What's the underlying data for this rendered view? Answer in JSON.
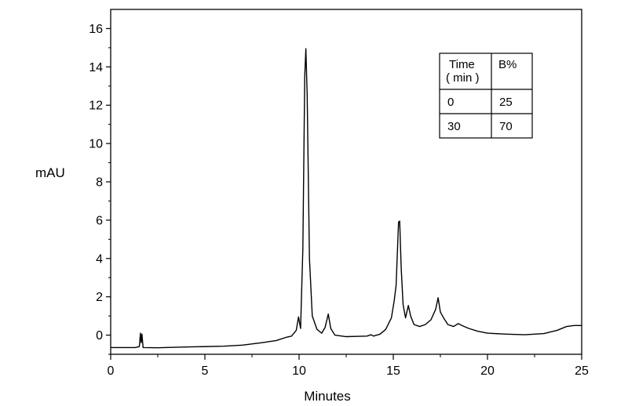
{
  "chart_data": {
    "type": "line",
    "title": "",
    "xlabel": "Minutes",
    "ylabel": "mAU",
    "xlim": [
      0,
      25
    ],
    "ylim": [
      -1,
      17
    ],
    "x_ticks": [
      "0",
      "5",
      "10",
      "15",
      "20",
      "25"
    ],
    "y_ticks": [
      "0",
      "2",
      "4",
      "6",
      "8",
      "10",
      "12",
      "14",
      "16"
    ],
    "grid": false,
    "legend": "none",
    "series": [
      {
        "color": "#000000",
        "points": [
          [
            0,
            -0.65
          ],
          [
            1.3,
            -0.65
          ],
          [
            1.52,
            -0.6
          ],
          [
            1.58,
            0.1
          ],
          [
            1.62,
            -0.4
          ],
          [
            1.66,
            0.05
          ],
          [
            1.72,
            -0.65
          ],
          [
            2.5,
            -0.66
          ],
          [
            4,
            -0.62
          ],
          [
            6,
            -0.58
          ],
          [
            7,
            -0.52
          ],
          [
            8,
            -0.4
          ],
          [
            8.8,
            -0.28
          ],
          [
            9.3,
            -0.12
          ],
          [
            9.6,
            -0.05
          ],
          [
            9.85,
            0.25
          ],
          [
            9.97,
            0.95
          ],
          [
            10.08,
            0.35
          ],
          [
            10.2,
            4.5
          ],
          [
            10.3,
            13.5
          ],
          [
            10.36,
            14.95
          ],
          [
            10.43,
            12.5
          ],
          [
            10.55,
            4.0
          ],
          [
            10.7,
            1.0
          ],
          [
            10.95,
            0.3
          ],
          [
            11.2,
            0.1
          ],
          [
            11.38,
            0.4
          ],
          [
            11.55,
            1.1
          ],
          [
            11.68,
            0.35
          ],
          [
            11.9,
            0.0
          ],
          [
            12.5,
            -0.08
          ],
          [
            13.2,
            -0.06
          ],
          [
            13.6,
            -0.05
          ],
          [
            13.82,
            0.02
          ],
          [
            13.95,
            -0.05
          ],
          [
            14.3,
            0.05
          ],
          [
            14.6,
            0.3
          ],
          [
            14.9,
            0.9
          ],
          [
            15.05,
            1.8
          ],
          [
            15.15,
            2.6
          ],
          [
            15.28,
            5.9
          ],
          [
            15.34,
            5.95
          ],
          [
            15.42,
            3.5
          ],
          [
            15.52,
            1.6
          ],
          [
            15.65,
            0.9
          ],
          [
            15.8,
            1.55
          ],
          [
            15.92,
            1.0
          ],
          [
            16.1,
            0.55
          ],
          [
            16.4,
            0.45
          ],
          [
            16.7,
            0.55
          ],
          [
            17.0,
            0.8
          ],
          [
            17.25,
            1.35
          ],
          [
            17.38,
            1.95
          ],
          [
            17.5,
            1.2
          ],
          [
            17.7,
            0.85
          ],
          [
            17.9,
            0.55
          ],
          [
            18.2,
            0.45
          ],
          [
            18.45,
            0.6
          ],
          [
            18.65,
            0.5
          ],
          [
            19.0,
            0.35
          ],
          [
            19.5,
            0.2
          ],
          [
            20.0,
            0.1
          ],
          [
            21.0,
            0.05
          ],
          [
            22.0,
            0.02
          ],
          [
            23.0,
            0.08
          ],
          [
            23.7,
            0.25
          ],
          [
            24.2,
            0.45
          ],
          [
            24.6,
            0.5
          ],
          [
            25,
            0.5
          ]
        ]
      }
    ],
    "gradient_table": {
      "headers": [
        "Time\n( min )",
        "B%"
      ],
      "rows": [
        [
          "0",
          "25"
        ],
        [
          "30",
          "70"
        ]
      ]
    }
  }
}
